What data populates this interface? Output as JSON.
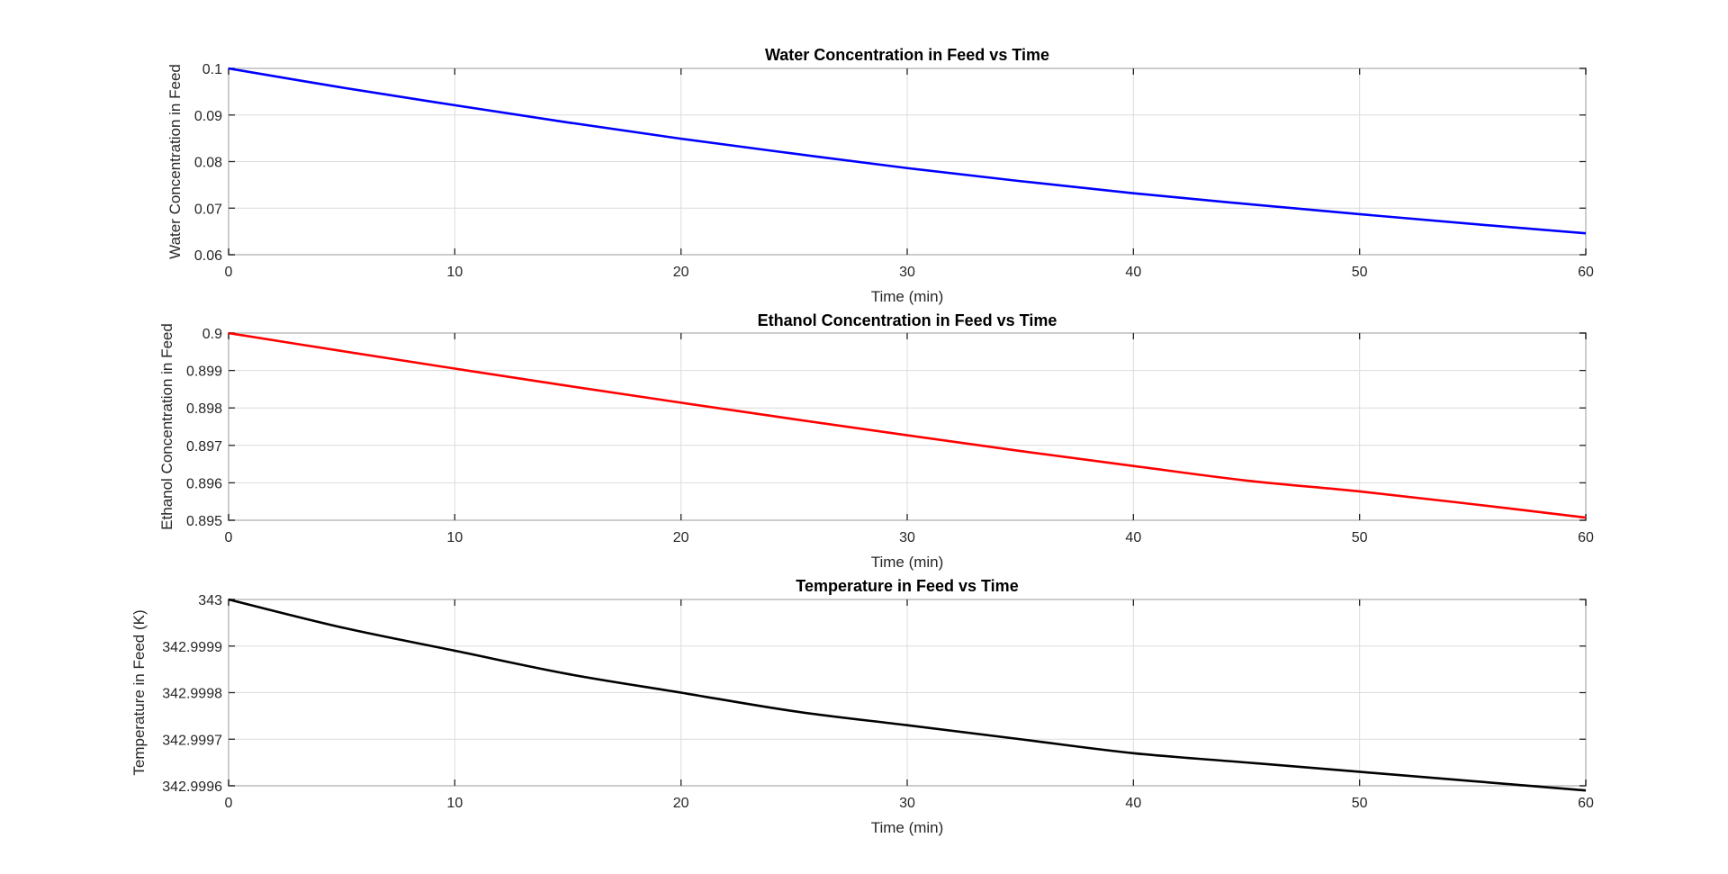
{
  "chart_data": [
    {
      "type": "line",
      "title": "Water Concentration in Feed vs Time",
      "xlabel": "Time (min)",
      "ylabel": "Water Concentration in Feed",
      "xlim": [
        0,
        60
      ],
      "ylim": [
        0.06,
        0.1
      ],
      "xticks": [
        "0",
        "10",
        "20",
        "30",
        "40",
        "50",
        "60"
      ],
      "yticks": [
        "0.06",
        "0.07",
        "0.08",
        "0.09",
        "0.1"
      ],
      "grid": true,
      "series": [
        {
          "color": "#0000ff",
          "x": [
            0,
            5,
            10,
            15,
            20,
            25,
            30,
            35,
            40,
            45,
            50,
            55,
            60
          ],
          "y": [
            0.1,
            0.0959,
            0.0921,
            0.0884,
            0.0849,
            0.0817,
            0.0786,
            0.0758,
            0.0732,
            0.0709,
            0.0687,
            0.0666,
            0.0646
          ]
        }
      ]
    },
    {
      "type": "line",
      "title": "Ethanol Concentration in Feed vs Time",
      "xlabel": "Time (min)",
      "ylabel": "Ethanol Concentration in Feed",
      "xlim": [
        0,
        60
      ],
      "ylim": [
        0.895,
        0.9
      ],
      "xticks": [
        "0",
        "10",
        "20",
        "30",
        "40",
        "50",
        "60"
      ],
      "yticks": [
        "0.895",
        "0.896",
        "0.897",
        "0.898",
        "0.899",
        "0.9"
      ],
      "grid": true,
      "series": [
        {
          "color": "#ff0000",
          "x": [
            0,
            5,
            10,
            15,
            20,
            25,
            30,
            35,
            40,
            45,
            50,
            55,
            60
          ],
          "y": [
            0.9,
            0.89952,
            0.89905,
            0.89859,
            0.89814,
            0.8977,
            0.89727,
            0.89685,
            0.89645,
            0.89606,
            0.89577,
            0.89543,
            0.89507
          ]
        }
      ]
    },
    {
      "type": "line",
      "title": "Temperature in Feed vs Time",
      "xlabel": "Time (min)",
      "ylabel": "Temperature in Feed (K)",
      "xlim": [
        0,
        60
      ],
      "ylim": [
        342.9996,
        343.0
      ],
      "xticks": [
        "0",
        "10",
        "20",
        "30",
        "40",
        "50",
        "60"
      ],
      "yticks": [
        "342.9996",
        "342.9997",
        "342.9998",
        "342.9999",
        "343"
      ],
      "grid": true,
      "series": [
        {
          "color": "#000000",
          "x": [
            0,
            5,
            10,
            15,
            20,
            25,
            30,
            35,
            40,
            45,
            50,
            55,
            60
          ],
          "y": [
            343.0,
            342.99994,
            342.99989,
            342.99984,
            342.9998,
            342.99976,
            342.99973,
            342.9997,
            342.99967,
            342.99965,
            342.99963,
            342.99961,
            342.99959
          ]
        }
      ]
    }
  ]
}
